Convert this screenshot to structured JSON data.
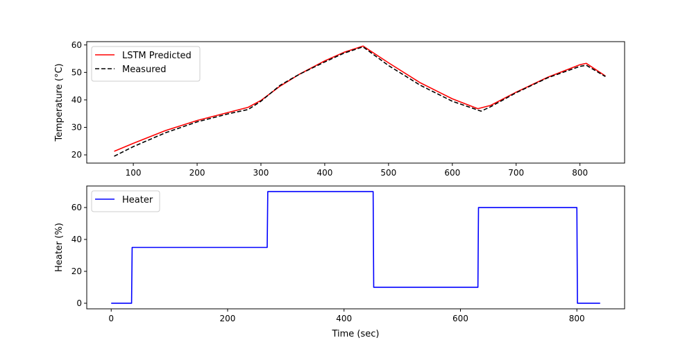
{
  "chart_data": [
    {
      "type": "line",
      "ylabel": "Temperature (°C)",
      "xlim": [
        27,
        870
      ],
      "ylim": [
        17,
        61.2
      ],
      "xticks": [
        100,
        200,
        300,
        400,
        500,
        600,
        700,
        800
      ],
      "yticks": [
        20,
        30,
        40,
        50,
        60
      ],
      "legend": "top-left",
      "series": [
        {
          "name": "LSTM Predicted",
          "color": "#ff0000",
          "style": "solid",
          "x": [
            70,
            100,
            150,
            200,
            250,
            280,
            300,
            330,
            360,
            400,
            430,
            460,
            500,
            550,
            600,
            640,
            660,
            700,
            750,
            800,
            810,
            840
          ],
          "y": [
            21.3,
            24.2,
            28.8,
            32.5,
            35.5,
            37.3,
            39.8,
            45.0,
            49.3,
            54.2,
            57.3,
            59.6,
            53.5,
            46.2,
            40.4,
            36.8,
            38.0,
            42.8,
            48.3,
            52.8,
            53.3,
            48.7
          ]
        },
        {
          "name": "Measured",
          "color": "#000000",
          "style": "dashed",
          "x": [
            70,
            100,
            150,
            200,
            250,
            280,
            300,
            330,
            360,
            400,
            430,
            460,
            500,
            550,
            600,
            645,
            660,
            700,
            750,
            800,
            810,
            840
          ],
          "y": [
            19.5,
            23.0,
            28.0,
            32.0,
            35.0,
            36.5,
            39.5,
            45.3,
            49.3,
            53.8,
            57.0,
            59.3,
            52.5,
            45.3,
            39.5,
            35.9,
            37.5,
            42.6,
            48.1,
            52.2,
            52.6,
            48.5
          ]
        }
      ]
    },
    {
      "type": "line",
      "xlabel": "Time (sec)",
      "ylabel": "Heater (%)",
      "xlim": [
        -42,
        882
      ],
      "ylim": [
        -3.5,
        73.5
      ],
      "xticks": [
        0,
        200,
        400,
        600,
        800
      ],
      "yticks": [
        0,
        20,
        40,
        60
      ],
      "legend": "top-left",
      "series": [
        {
          "name": "Heater",
          "color": "#0000ff",
          "style": "solid",
          "x": [
            0,
            35,
            36,
            268,
            269,
            450,
            451,
            630,
            631,
            800,
            801,
            840
          ],
          "y": [
            0,
            0,
            35,
            35,
            70,
            70,
            10,
            10,
            60,
            60,
            0,
            0
          ]
        }
      ]
    }
  ]
}
